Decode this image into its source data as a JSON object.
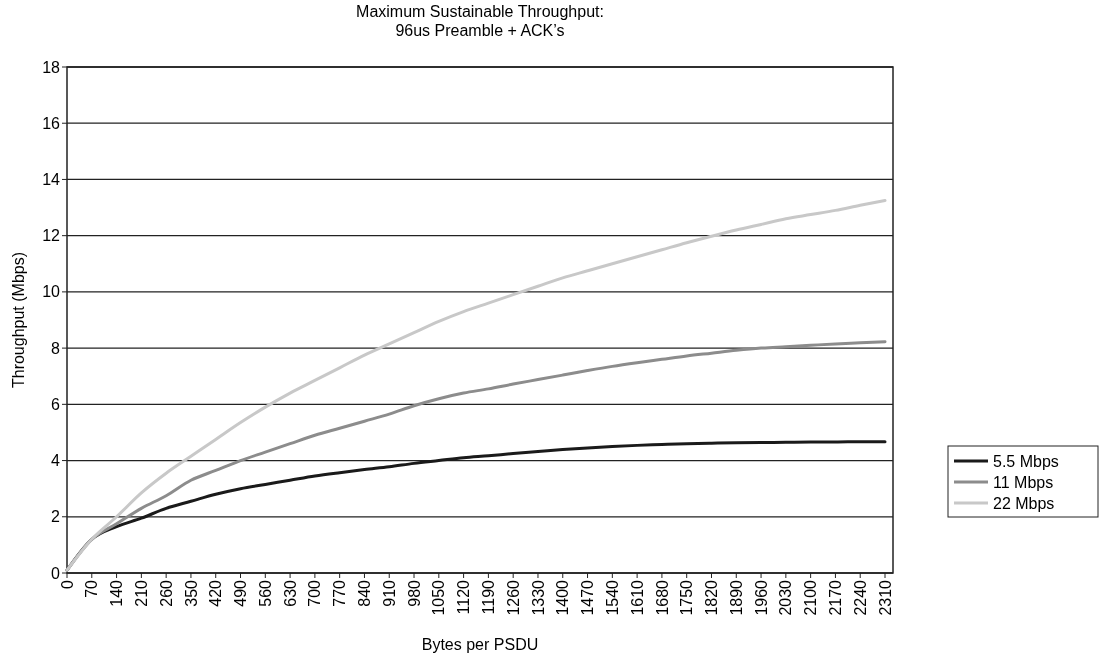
{
  "chart_data": {
    "type": "line",
    "title": "Maximum Sustainable Throughput:\n96us Preamble + ACK’s",
    "xlabel": "Bytes per PSDU",
    "ylabel": "Throughput (Mbps)",
    "categories": [
      "0",
      "70",
      "140",
      "210",
      "260",
      "350",
      "420",
      "490",
      "560",
      "630",
      "700",
      "770",
      "840",
      "910",
      "980",
      "1050",
      "1120",
      "1190",
      "1260",
      "1330",
      "1400",
      "1470",
      "1540",
      "1610",
      "1680",
      "1750",
      "1820",
      "1890",
      "1960",
      "2030",
      "2100",
      "2170",
      "2240",
      "2310"
    ],
    "series": [
      {
        "name": "5.5 Mbps",
        "color": "#1a1a1a",
        "values": [
          0.1,
          1.2,
          1.65,
          1.95,
          2.3,
          2.55,
          2.8,
          3.0,
          3.15,
          3.3,
          3.45,
          3.57,
          3.68,
          3.78,
          3.9,
          4.0,
          4.1,
          4.17,
          4.25,
          4.32,
          4.39,
          4.45,
          4.5,
          4.54,
          4.57,
          4.6,
          4.62,
          4.63,
          4.64,
          4.65,
          4.66,
          4.66,
          4.67,
          4.67
        ]
      },
      {
        "name": "11 Mbps",
        "color": "#8c8c8c",
        "values": [
          0.1,
          1.2,
          1.75,
          2.3,
          2.75,
          3.3,
          3.65,
          4.0,
          4.3,
          4.6,
          4.9,
          5.15,
          5.4,
          5.65,
          5.95,
          6.2,
          6.4,
          6.55,
          6.72,
          6.88,
          7.04,
          7.2,
          7.35,
          7.48,
          7.6,
          7.72,
          7.82,
          7.92,
          8.0,
          8.05,
          8.1,
          8.15,
          8.19,
          8.23
        ]
      },
      {
        "name": "22 Mbps",
        "color": "#c8c8c8",
        "values": [
          0.1,
          1.2,
          2.0,
          2.85,
          3.55,
          4.15,
          4.75,
          5.35,
          5.9,
          6.4,
          6.85,
          7.3,
          7.75,
          8.15,
          8.55,
          8.95,
          9.3,
          9.6,
          9.9,
          10.2,
          10.5,
          10.75,
          11.0,
          11.25,
          11.5,
          11.75,
          11.98,
          12.2,
          12.4,
          12.6,
          12.75,
          12.9,
          13.08,
          13.25
        ]
      }
    ],
    "ylim": [
      0,
      18
    ],
    "yticks": [
      0,
      2,
      4,
      6,
      8,
      10,
      12,
      14,
      16,
      18
    ],
    "grid": "y",
    "legend": "right",
    "marker": "none",
    "line_style": "solid"
  }
}
